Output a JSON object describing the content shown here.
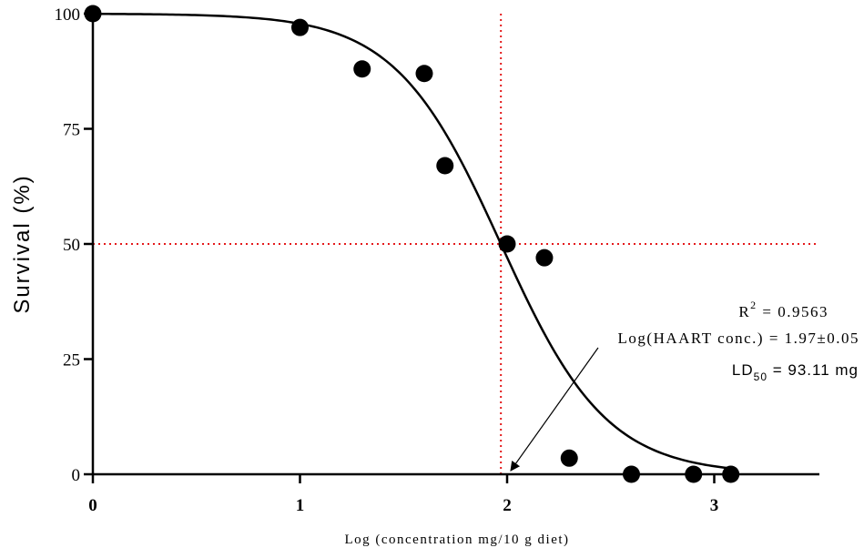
{
  "chart_data": {
    "type": "scatter",
    "xlabel": "Log (concentration mg/10 g diet)",
    "ylabel": "Survival (%)",
    "xlim": [
      0,
      3.5
    ],
    "ylim": [
      0,
      100
    ],
    "x_ticks": [
      "0",
      "1",
      "2",
      "3"
    ],
    "y_ticks": [
      "0",
      "25",
      "50",
      "75",
      "100"
    ],
    "grid": false,
    "legend": "none",
    "series": [
      {
        "points": [
          {
            "x": 0,
            "y": 100
          },
          {
            "x": 1.0,
            "y": 97
          },
          {
            "x": 1.3,
            "y": 88
          },
          {
            "x": 1.6,
            "y": 87
          },
          {
            "x": 1.7,
            "y": 67
          },
          {
            "x": 2.0,
            "y": 50
          },
          {
            "x": 2.18,
            "y": 47
          },
          {
            "x": 2.3,
            "y": 3.5
          },
          {
            "x": 2.6,
            "y": 0
          },
          {
            "x": 2.9,
            "y": 0
          },
          {
            "x": 3.08,
            "y": 0
          }
        ]
      }
    ],
    "fit_curve": {
      "model": "sigmoid dose-response",
      "top": 100,
      "bottom": 0,
      "log_ec50": 1.97,
      "hill_slope": -1.7,
      "x_range": [
        0,
        3.08
      ]
    },
    "reference_lines": {
      "color": "#e41a1c",
      "x": 1.97,
      "y": 50
    },
    "annotations": {
      "r2_label": "R",
      "r2_sup": "2",
      "r2_value": " = 0.9563",
      "log_label": "Log(HAART conc.) = 1.97±0.05",
      "ld_prefix": "LD",
      "ld_sub": "50",
      "ld_value": " = 93.11 mg",
      "arrow_target_x": 2.0,
      "arrow_target_y": 0
    }
  }
}
